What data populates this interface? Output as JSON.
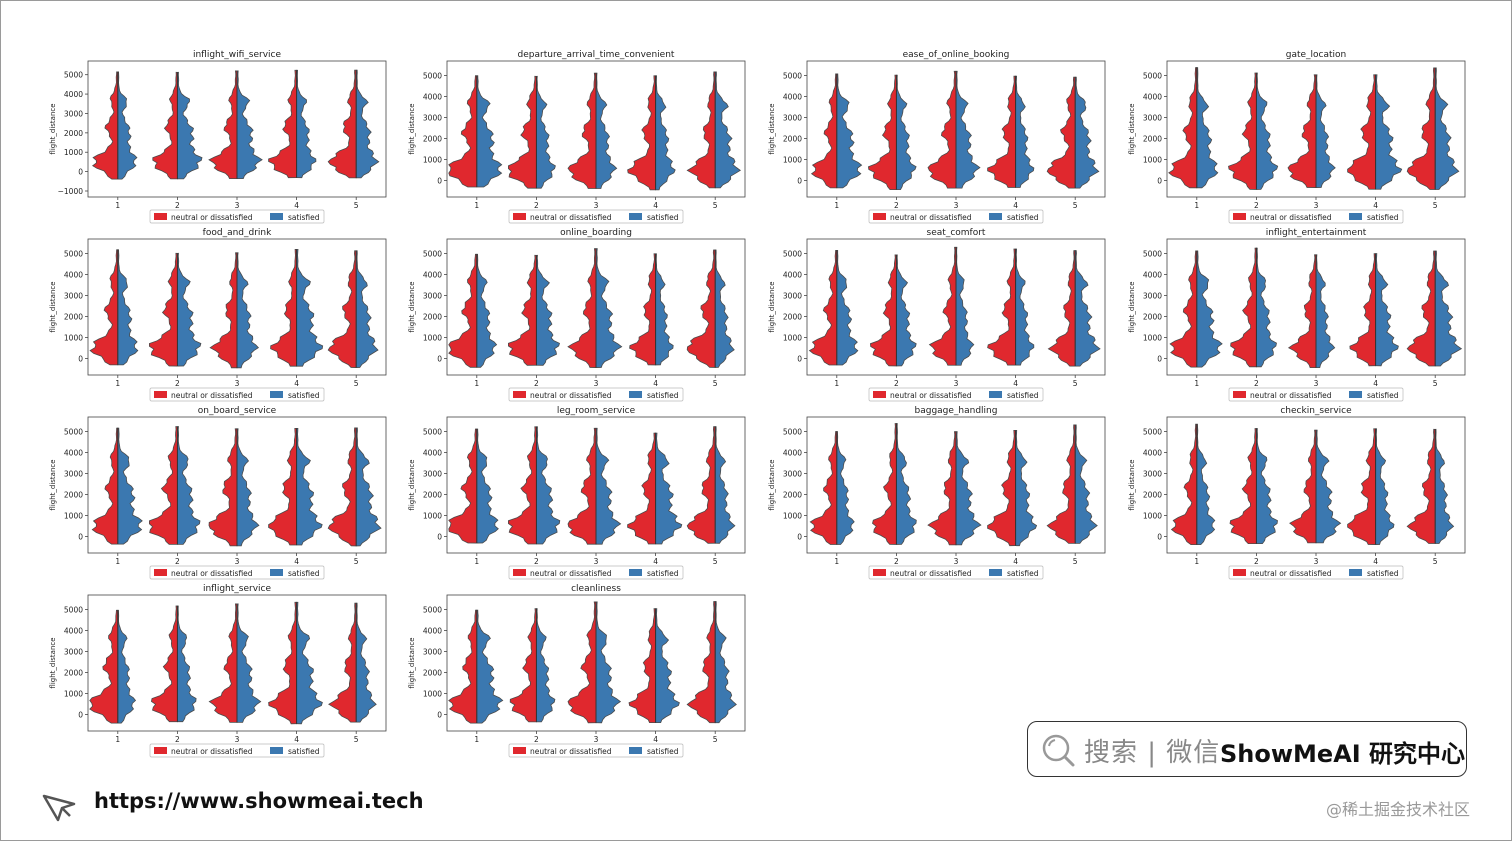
{
  "chart_data": {
    "type": "violin",
    "shared": {
      "ylabel": "flight_distance",
      "categories": [
        "1",
        "2",
        "3",
        "4",
        "5"
      ],
      "legend": [
        "neutral or dissatisfied",
        "satisfied"
      ],
      "colors": {
        "dissatisfied": "#e0282e",
        "satisfied": "#3b78b0",
        "outline": "#4a4a4a"
      },
      "legend_position": "below-center"
    },
    "panels": [
      {
        "title": "inflight_wifi_service",
        "yticks": [
          "5000",
          "4000",
          "3000",
          "2000",
          "1000",
          "0",
          "−1000"
        ],
        "ylim": [
          -1000,
          5500
        ]
      },
      {
        "title": "departure_arrival_time_convenient",
        "yticks": [
          "5000",
          "4000",
          "3000",
          "2000",
          "1000",
          "0"
        ],
        "ylim": [
          -500,
          5500
        ]
      },
      {
        "title": "ease_of_online_booking",
        "yticks": [
          "5000",
          "4000",
          "3000",
          "2000",
          "1000",
          "0"
        ],
        "ylim": [
          -500,
          5500
        ]
      },
      {
        "title": "gate_location",
        "yticks": [
          "5000",
          "4000",
          "3000",
          "2000",
          "1000",
          "0"
        ],
        "ylim": [
          -500,
          5500
        ]
      },
      {
        "title": "food_and_drink",
        "yticks": [
          "5000",
          "4000",
          "3000",
          "2000",
          "1000",
          "0"
        ],
        "ylim": [
          -500,
          5500
        ]
      },
      {
        "title": "online_boarding",
        "yticks": [
          "5000",
          "4000",
          "3000",
          "2000",
          "1000",
          "0"
        ],
        "ylim": [
          -500,
          5500
        ]
      },
      {
        "title": "seat_comfort",
        "yticks": [
          "5000",
          "4000",
          "3000",
          "2000",
          "1000",
          "0"
        ],
        "ylim": [
          -500,
          5500
        ]
      },
      {
        "title": "inflight_entertainment",
        "yticks": [
          "5000",
          "4000",
          "3000",
          "2000",
          "1000",
          "0"
        ],
        "ylim": [
          -500,
          5500
        ]
      },
      {
        "title": "on_board_service",
        "yticks": [
          "5000",
          "4000",
          "3000",
          "2000",
          "1000",
          "0"
        ],
        "ylim": [
          -500,
          5500
        ]
      },
      {
        "title": "leg_room_service",
        "yticks": [
          "5000",
          "4000",
          "3000",
          "2000",
          "1000",
          "0"
        ],
        "ylim": [
          -500,
          5500
        ]
      },
      {
        "title": "baggage_handling",
        "yticks": [
          "5000",
          "4000",
          "3000",
          "2000",
          "1000",
          "0"
        ],
        "ylim": [
          -500,
          5500
        ]
      },
      {
        "title": "checkin_service",
        "yticks": [
          "5000",
          "4000",
          "3000",
          "2000",
          "1000",
          "0"
        ],
        "ylim": [
          -500,
          5500
        ]
      },
      {
        "title": "inflight_service",
        "yticks": [
          "5000",
          "4000",
          "3000",
          "2000",
          "1000",
          "0"
        ],
        "ylim": [
          -500,
          5500
        ]
      },
      {
        "title": "cleanliness",
        "yticks": [
          "5000",
          "4000",
          "3000",
          "2000",
          "1000",
          "0"
        ],
        "ylim": [
          -500,
          5500
        ]
      }
    ]
  },
  "watermark": {
    "search_text": "搜索 | 微信",
    "brand": "ShowMeAI 研究中心",
    "url": "https://www.showmeai.tech",
    "community": "@稀土掘金技术社区"
  },
  "icons": {
    "search": "search-icon",
    "cursor": "cursor-icon"
  }
}
